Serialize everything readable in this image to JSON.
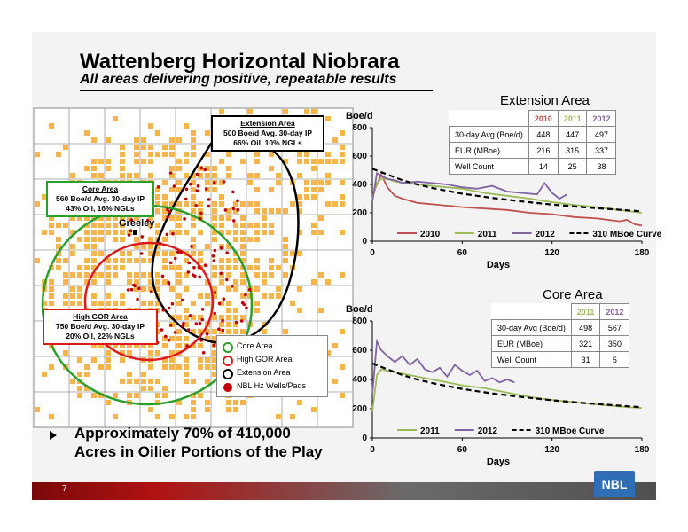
{
  "header": {
    "title": "Wattenberg Horizontal Niobrara",
    "subtitle": "All areas delivering positive, repeatable results"
  },
  "map": {
    "city": "Greeley",
    "callouts": {
      "extension": {
        "head": "Extension Area",
        "line1": "500 Boe/d Avg. 30-day IP",
        "line2": "66% Oil, 10% NGLs"
      },
      "core": {
        "head": "Core Area",
        "line1": "560 Boe/d Avg. 30-day IP",
        "line2": "43% Oil, 16% NGLs"
      },
      "highgor": {
        "head": "High GOR Area",
        "line1": "750 Boe/d Avg. 30-day IP",
        "line2": "20% Oil, 22% NGLs"
      }
    },
    "legend": {
      "core": "Core Area",
      "highgor": "High GOR Area",
      "extension": "Extension Area",
      "wells": "NBL Hz Wells/Pads"
    },
    "colors": {
      "acreage": "#f5b54a",
      "core": "#2aa02a",
      "highgor": "#e01a1a",
      "extension": "#000000",
      "wells": "#c00000"
    }
  },
  "bullet": {
    "line1": "Approximately 70% of 410,000",
    "line2": "Acres in Oilier Portions of the Play"
  },
  "footer": {
    "page": "7",
    "logo": "NBL"
  },
  "extension_table": {
    "headers": [
      "2010",
      "2011",
      "2012"
    ],
    "rows": [
      {
        "label": "30-day Avg (Boe/d)",
        "values": [
          "448",
          "447",
          "497"
        ]
      },
      {
        "label": "EUR (MBoe)",
        "values": [
          "216",
          "315",
          "337"
        ]
      },
      {
        "label": "Well Count",
        "values": [
          "14",
          "25",
          "38"
        ]
      }
    ]
  },
  "core_table": {
    "headers": [
      "2011",
      "2012"
    ],
    "rows": [
      {
        "label": "30-day Avg (Boe/d)",
        "values": [
          "498",
          "567"
        ]
      },
      {
        "label": "EUR (MBoe)",
        "values": [
          "321",
          "350"
        ]
      },
      {
        "label": "Well Count",
        "values": [
          "31",
          "5"
        ]
      }
    ]
  },
  "chart_data": [
    {
      "type": "line",
      "title": "Extension Area",
      "ylabel": "Boe/d",
      "xlabel": "Days",
      "xlim": [
        0,
        180
      ],
      "ylim": [
        0,
        800
      ],
      "xticks": [
        "0",
        "60",
        "120",
        "180"
      ],
      "yticks": [
        "0",
        "200",
        "400",
        "600",
        "800"
      ],
      "legend_position": "bottom",
      "series": [
        {
          "name": "2010",
          "color": "#c0504d",
          "dash": false,
          "x": [
            0,
            3,
            6,
            10,
            15,
            20,
            30,
            40,
            50,
            60,
            75,
            90,
            105,
            120,
            135,
            150,
            165,
            170,
            175,
            180
          ],
          "y": [
            320,
            400,
            470,
            380,
            320,
            300,
            270,
            260,
            250,
            240,
            230,
            220,
            200,
            190,
            170,
            160,
            140,
            150,
            120,
            110
          ]
        },
        {
          "name": "2011",
          "color": "#9bbb59",
          "dash": false,
          "x": [
            0,
            3,
            6,
            10,
            15,
            20,
            30,
            40,
            50,
            60,
            75,
            90,
            105,
            120,
            135,
            150,
            165,
            180
          ],
          "y": [
            300,
            410,
            440,
            440,
            420,
            415,
            400,
            390,
            380,
            370,
            340,
            320,
            300,
            275,
            255,
            240,
            220,
            200
          ]
        },
        {
          "name": "2012",
          "color": "#8064a2",
          "dash": false,
          "x": [
            0,
            3,
            6,
            10,
            15,
            20,
            30,
            40,
            50,
            60,
            70,
            80,
            90,
            100,
            110,
            115,
            120,
            125,
            130
          ],
          "y": [
            280,
            480,
            460,
            440,
            430,
            410,
            420,
            410,
            400,
            380,
            370,
            390,
            350,
            340,
            330,
            410,
            340,
            300,
            330
          ]
        },
        {
          "name": "310 MBoe Curve",
          "color": "#000000",
          "dash": true,
          "x": [
            0,
            10,
            20,
            30,
            40,
            60,
            80,
            100,
            120,
            140,
            160,
            180
          ],
          "y": [
            510,
            470,
            430,
            400,
            375,
            335,
            305,
            280,
            258,
            240,
            225,
            210
          ]
        }
      ]
    },
    {
      "type": "line",
      "title": "Core Area",
      "ylabel": "Boe/d",
      "xlabel": "Days",
      "xlim": [
        0,
        180
      ],
      "ylim": [
        0,
        800
      ],
      "xticks": [
        "0",
        "60",
        "120",
        "180"
      ],
      "yticks": [
        "0",
        "200",
        "400",
        "600",
        "800"
      ],
      "legend_position": "bottom",
      "series": [
        {
          "name": "2011",
          "color": "#9bbb59",
          "dash": false,
          "x": [
            0,
            3,
            6,
            10,
            15,
            20,
            30,
            40,
            50,
            60,
            75,
            90,
            105,
            120,
            135,
            150,
            165,
            180
          ],
          "y": [
            180,
            430,
            470,
            460,
            450,
            440,
            420,
            400,
            380,
            360,
            340,
            310,
            280,
            260,
            245,
            230,
            215,
            205
          ]
        },
        {
          "name": "2012",
          "color": "#8064a2",
          "dash": false,
          "x": [
            0,
            3,
            6,
            10,
            15,
            20,
            25,
            30,
            35,
            40,
            45,
            50,
            55,
            60,
            65,
            70,
            75,
            80,
            85,
            90,
            95
          ],
          "y": [
            300,
            660,
            600,
            560,
            520,
            560,
            500,
            540,
            470,
            450,
            480,
            420,
            500,
            460,
            430,
            460,
            390,
            410,
            380,
            400,
            380
          ]
        },
        {
          "name": "310 MBoe Curve",
          "color": "#000000",
          "dash": true,
          "x": [
            0,
            10,
            20,
            30,
            40,
            60,
            80,
            100,
            120,
            140,
            160,
            180
          ],
          "y": [
            510,
            470,
            430,
            400,
            375,
            335,
            305,
            280,
            258,
            240,
            225,
            210
          ]
        }
      ]
    }
  ]
}
